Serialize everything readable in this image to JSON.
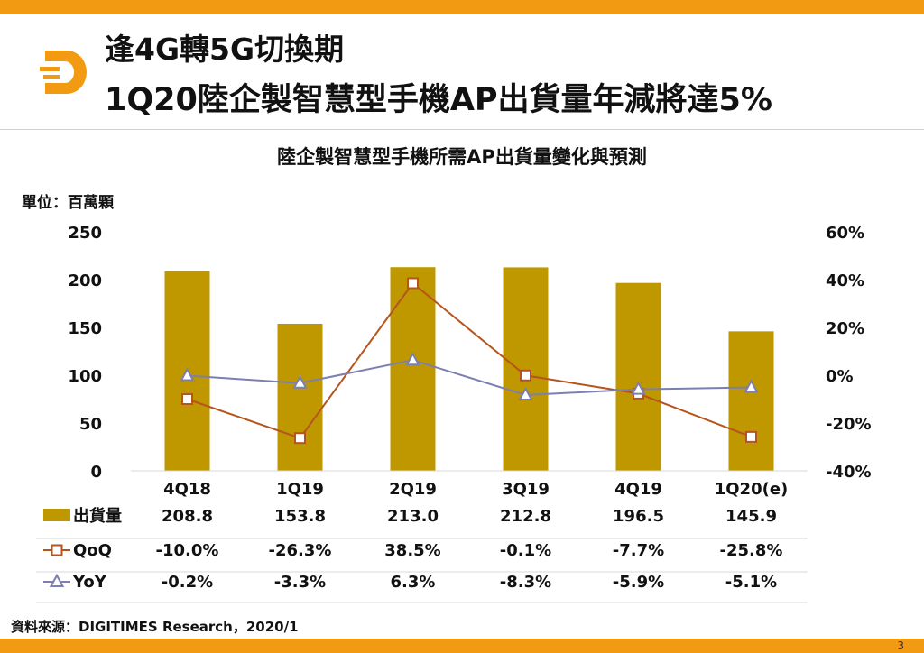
{
  "header": {
    "title_line1": "逢4G轉5G切換期",
    "title_line2": "1Q20陸企製智慧型手機AP出貨量年減將達5%"
  },
  "unit_label": "單位：百萬顆",
  "source": "資料來源：DIGITIMES Research，2020/1",
  "page_number": "3",
  "colors": {
    "accent": "#f29a12",
    "bar": "#bf9800",
    "qoq": "#b5541c",
    "yoy": "#7c7fb0"
  },
  "chart_data": {
    "type": "bar",
    "title": "陸企製智慧型手機所需AP出貨量變化與預測",
    "categories": [
      "4Q18",
      "1Q19",
      "2Q19",
      "3Q19",
      "4Q19",
      "1Q20(e)"
    ],
    "y_left": {
      "ylim": [
        0,
        250
      ],
      "ticks": [
        "0",
        "50",
        "100",
        "150",
        "200",
        "250"
      ]
    },
    "y_right": {
      "ylim": [
        -40,
        60
      ],
      "ticks": [
        "-40%",
        "-20%",
        "0%",
        "20%",
        "40%",
        "60%"
      ]
    },
    "series": [
      {
        "name": "出貨量",
        "type": "bar",
        "axis": "left",
        "values": [
          208.8,
          153.8,
          213.0,
          212.8,
          196.5,
          145.9
        ],
        "labels": [
          "208.8",
          "153.8",
          "213.0",
          "212.8",
          "196.5",
          "145.9"
        ]
      },
      {
        "name": "QoQ",
        "type": "line",
        "marker": "square",
        "axis": "right",
        "values": [
          -10.0,
          -26.3,
          38.5,
          -0.1,
          -7.7,
          -25.8
        ],
        "labels": [
          "-10.0%",
          "-26.3%",
          "38.5%",
          "-0.1%",
          "-7.7%",
          "-25.8%"
        ]
      },
      {
        "name": "YoY",
        "type": "line",
        "marker": "triangle",
        "axis": "right",
        "values": [
          -0.2,
          -3.3,
          6.3,
          -8.3,
          -5.9,
          -5.1
        ],
        "labels": [
          "-0.2%",
          "-3.3%",
          "6.3%",
          "-8.3%",
          "-5.9%",
          "-5.1%"
        ]
      }
    ],
    "grid": false,
    "legend": "data-table-bottom"
  }
}
